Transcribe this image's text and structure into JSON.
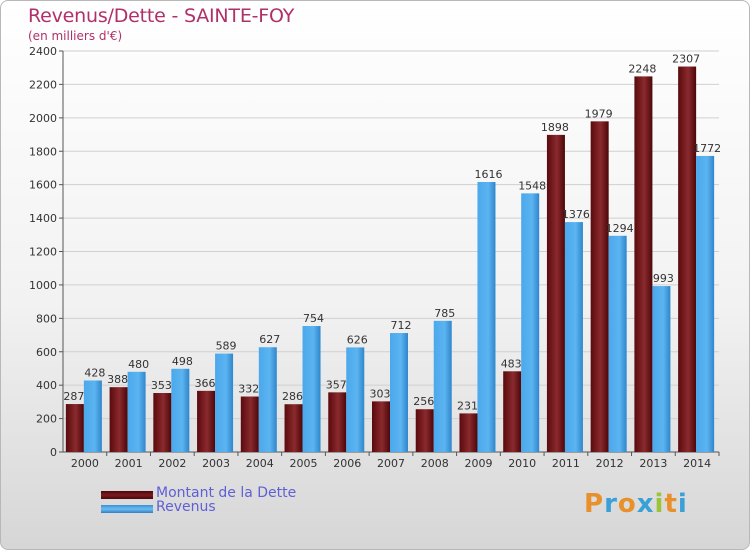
{
  "header": {
    "title": "Revenus/Dette - SAINTE-FOY",
    "subtitle": "(en milliers d'€)"
  },
  "colors": {
    "dette": "#6b0f12",
    "revenus": "#3d9ae0",
    "title": "#b0306a",
    "legend_text": "#5f5fd6"
  },
  "legend": {
    "dette_label": "Montant de la Dette",
    "revenus_label": "Revenus"
  },
  "logo": {
    "text": "Proxiti"
  },
  "chart_data": {
    "type": "bar",
    "title": "Revenus/Dette - SAINTE-FOY",
    "ylabel": "(en milliers d'€)",
    "xlabel": "",
    "ylim": [
      0,
      2400
    ],
    "yticks": [
      0,
      200,
      400,
      600,
      800,
      1000,
      1200,
      1400,
      1600,
      1800,
      2000,
      2200,
      2400
    ],
    "grid": true,
    "legend_position": "bottom-left",
    "categories": [
      "2000",
      "2001",
      "2002",
      "2003",
      "2004",
      "2005",
      "2006",
      "2007",
      "2008",
      "2009",
      "2010",
      "2011",
      "2012",
      "2013",
      "2014"
    ],
    "series": [
      {
        "name": "Montant de la Dette",
        "values": [
          287,
          388,
          353,
          366,
          332,
          286,
          357,
          303,
          256,
          231,
          483,
          1898,
          1979,
          2248,
          2307
        ]
      },
      {
        "name": "Revenus",
        "values": [
          428,
          480,
          498,
          589,
          627,
          754,
          626,
          712,
          785,
          1616,
          1548,
          1376,
          1294,
          993,
          1772
        ]
      }
    ]
  }
}
